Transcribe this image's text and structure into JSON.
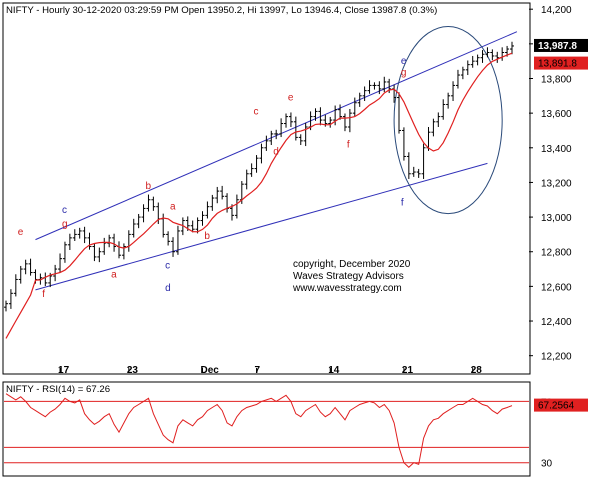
{
  "header": {
    "title": "NIFTY - Hourly 30-12-2020 03:29:59 PM Open 13950.2, Hi 13997, Lo 13946.4, Close 13987.8 (0.3%)"
  },
  "copyright": [
    "copyright, December 2020",
    "Waves Strategy Advisors",
    "www.wavesstrategy.com"
  ],
  "colors": {
    "bars": "#000000",
    "ma": "#e02020",
    "channel": "#3030b8",
    "labels_red": "#d02020",
    "labels_blue": "#2a2aa8",
    "rsi": "#e02020",
    "grid": "#c8c8c8"
  },
  "chart_data": [
    {
      "type": "ohlc",
      "title": "NIFTY - Hourly 30-12-2020 03:29:59 PM Open 13950.2, Hi 13997, Lo 13946.4, Close 13987.8 (0.3%)",
      "x_ticks": [
        {
          "label": "17",
          "index": 11
        },
        {
          "label": "23",
          "index": 25
        },
        {
          "label": "Dec",
          "index": 40
        },
        {
          "label": "7",
          "index": 51
        },
        {
          "label": "14",
          "index": 66
        },
        {
          "label": "21",
          "index": 81
        },
        {
          "label": "28",
          "index": 95
        }
      ],
      "y_ticks": [
        12200,
        12400,
        12600,
        12800,
        13000,
        13200,
        13400,
        13600,
        13800,
        14000,
        14200
      ],
      "ylim": [
        12100,
        14230
      ],
      "x_count": 104,
      "close": [
        12500,
        12560,
        12640,
        12700,
        12730,
        12680,
        12640,
        12650,
        12620,
        12660,
        12700,
        12760,
        12840,
        12880,
        12900,
        12920,
        12880,
        12830,
        12770,
        12800,
        12850,
        12880,
        12830,
        12780,
        12830,
        12900,
        12960,
        13000,
        13050,
        13100,
        13060,
        12990,
        12900,
        12860,
        12800,
        12920,
        12980,
        12950,
        12930,
        12980,
        13010,
        13060,
        13110,
        13150,
        13120,
        13050,
        13010,
        13100,
        13190,
        13250,
        13280,
        13340,
        13400,
        13440,
        13480,
        13480,
        13540,
        13580,
        13550,
        13460,
        13440,
        13520,
        13580,
        13610,
        13560,
        13540,
        13560,
        13620,
        13580,
        13520,
        13600,
        13660,
        13700,
        13730,
        13760,
        13760,
        13740,
        13780,
        13740,
        13690,
        13500,
        13350,
        13250,
        13260,
        13250,
        13400,
        13490,
        13550,
        13580,
        13650,
        13700,
        13760,
        13820,
        13850,
        13880,
        13900,
        13920,
        13940,
        13950,
        13930,
        13920,
        13950,
        13970,
        13987.8
      ],
      "ma_label": "13,891.8",
      "last_label": "13,987.8",
      "wave_labels": [
        {
          "text": "e",
          "index": 3,
          "value": 12915,
          "color": "red"
        },
        {
          "text": "f",
          "index": 8,
          "value": 12555,
          "color": "red"
        },
        {
          "text": "c",
          "index": 12,
          "value": 13040,
          "color": "blue"
        },
        {
          "text": "g",
          "index": 12,
          "value": 12960,
          "color": "red"
        },
        {
          "text": "a",
          "index": 22,
          "value": 12670,
          "color": "red"
        },
        {
          "text": "b",
          "index": 29,
          "value": 13180,
          "color": "red"
        },
        {
          "text": "a",
          "index": 34,
          "value": 13060,
          "color": "red"
        },
        {
          "text": "b",
          "index": 41,
          "value": 12890,
          "color": "red"
        },
        {
          "text": "c",
          "index": 33,
          "value": 12720,
          "color": "blue"
        },
        {
          "text": "d",
          "index": 33,
          "value": 12590,
          "color": "blue"
        },
        {
          "text": "c",
          "index": 51,
          "value": 13610,
          "color": "red"
        },
        {
          "text": "d",
          "index": 55,
          "value": 13380,
          "color": "red"
        },
        {
          "text": "e",
          "index": 58,
          "value": 13690,
          "color": "red"
        },
        {
          "text": "f",
          "index": 70,
          "value": 13420,
          "color": "red"
        },
        {
          "text": "e",
          "index": 81,
          "value": 13900,
          "color": "blue"
        },
        {
          "text": "g",
          "index": 81,
          "value": 13835,
          "color": "red"
        },
        {
          "text": "f",
          "index": 81,
          "value": 13085,
          "color": "blue"
        }
      ],
      "channel": {
        "upper": [
          [
            6,
            12870
          ],
          [
            104,
            14070
          ]
        ],
        "lower": [
          [
            6,
            12580
          ],
          [
            98,
            13310
          ]
        ]
      },
      "ellipse": {
        "center_index": 90,
        "center_value": 13560,
        "rx_index": 11,
        "ry_value": 540
      }
    },
    {
      "type": "line",
      "title": "NIFTY - RSI(14) = 67.26",
      "value_label": "67.2564",
      "ylim": [
        22,
        82
      ],
      "levels": [
        70,
        30
      ],
      "level_labels": [
        "70",
        "30"
      ],
      "values": [
        75,
        73,
        71,
        73,
        70,
        66,
        64,
        62,
        60,
        63,
        65,
        68,
        72,
        70,
        69,
        71,
        62,
        58,
        55,
        57,
        60,
        62,
        55,
        50,
        56,
        62,
        66,
        68,
        70,
        72,
        62,
        55,
        48,
        45,
        43,
        54,
        58,
        56,
        54,
        58,
        60,
        64,
        66,
        68,
        64,
        56,
        54,
        60,
        64,
        66,
        67,
        68,
        70,
        71,
        72,
        70,
        72,
        74,
        70,
        62,
        60,
        64,
        66,
        68,
        63,
        60,
        62,
        66,
        62,
        58,
        64,
        66,
        68,
        69,
        70,
        69,
        66,
        68,
        64,
        56,
        40,
        30,
        27,
        30,
        29,
        46,
        54,
        58,
        59,
        62,
        64,
        66,
        68,
        68,
        70,
        72,
        70,
        68,
        67,
        64,
        62,
        65,
        66,
        67.26
      ]
    }
  ]
}
